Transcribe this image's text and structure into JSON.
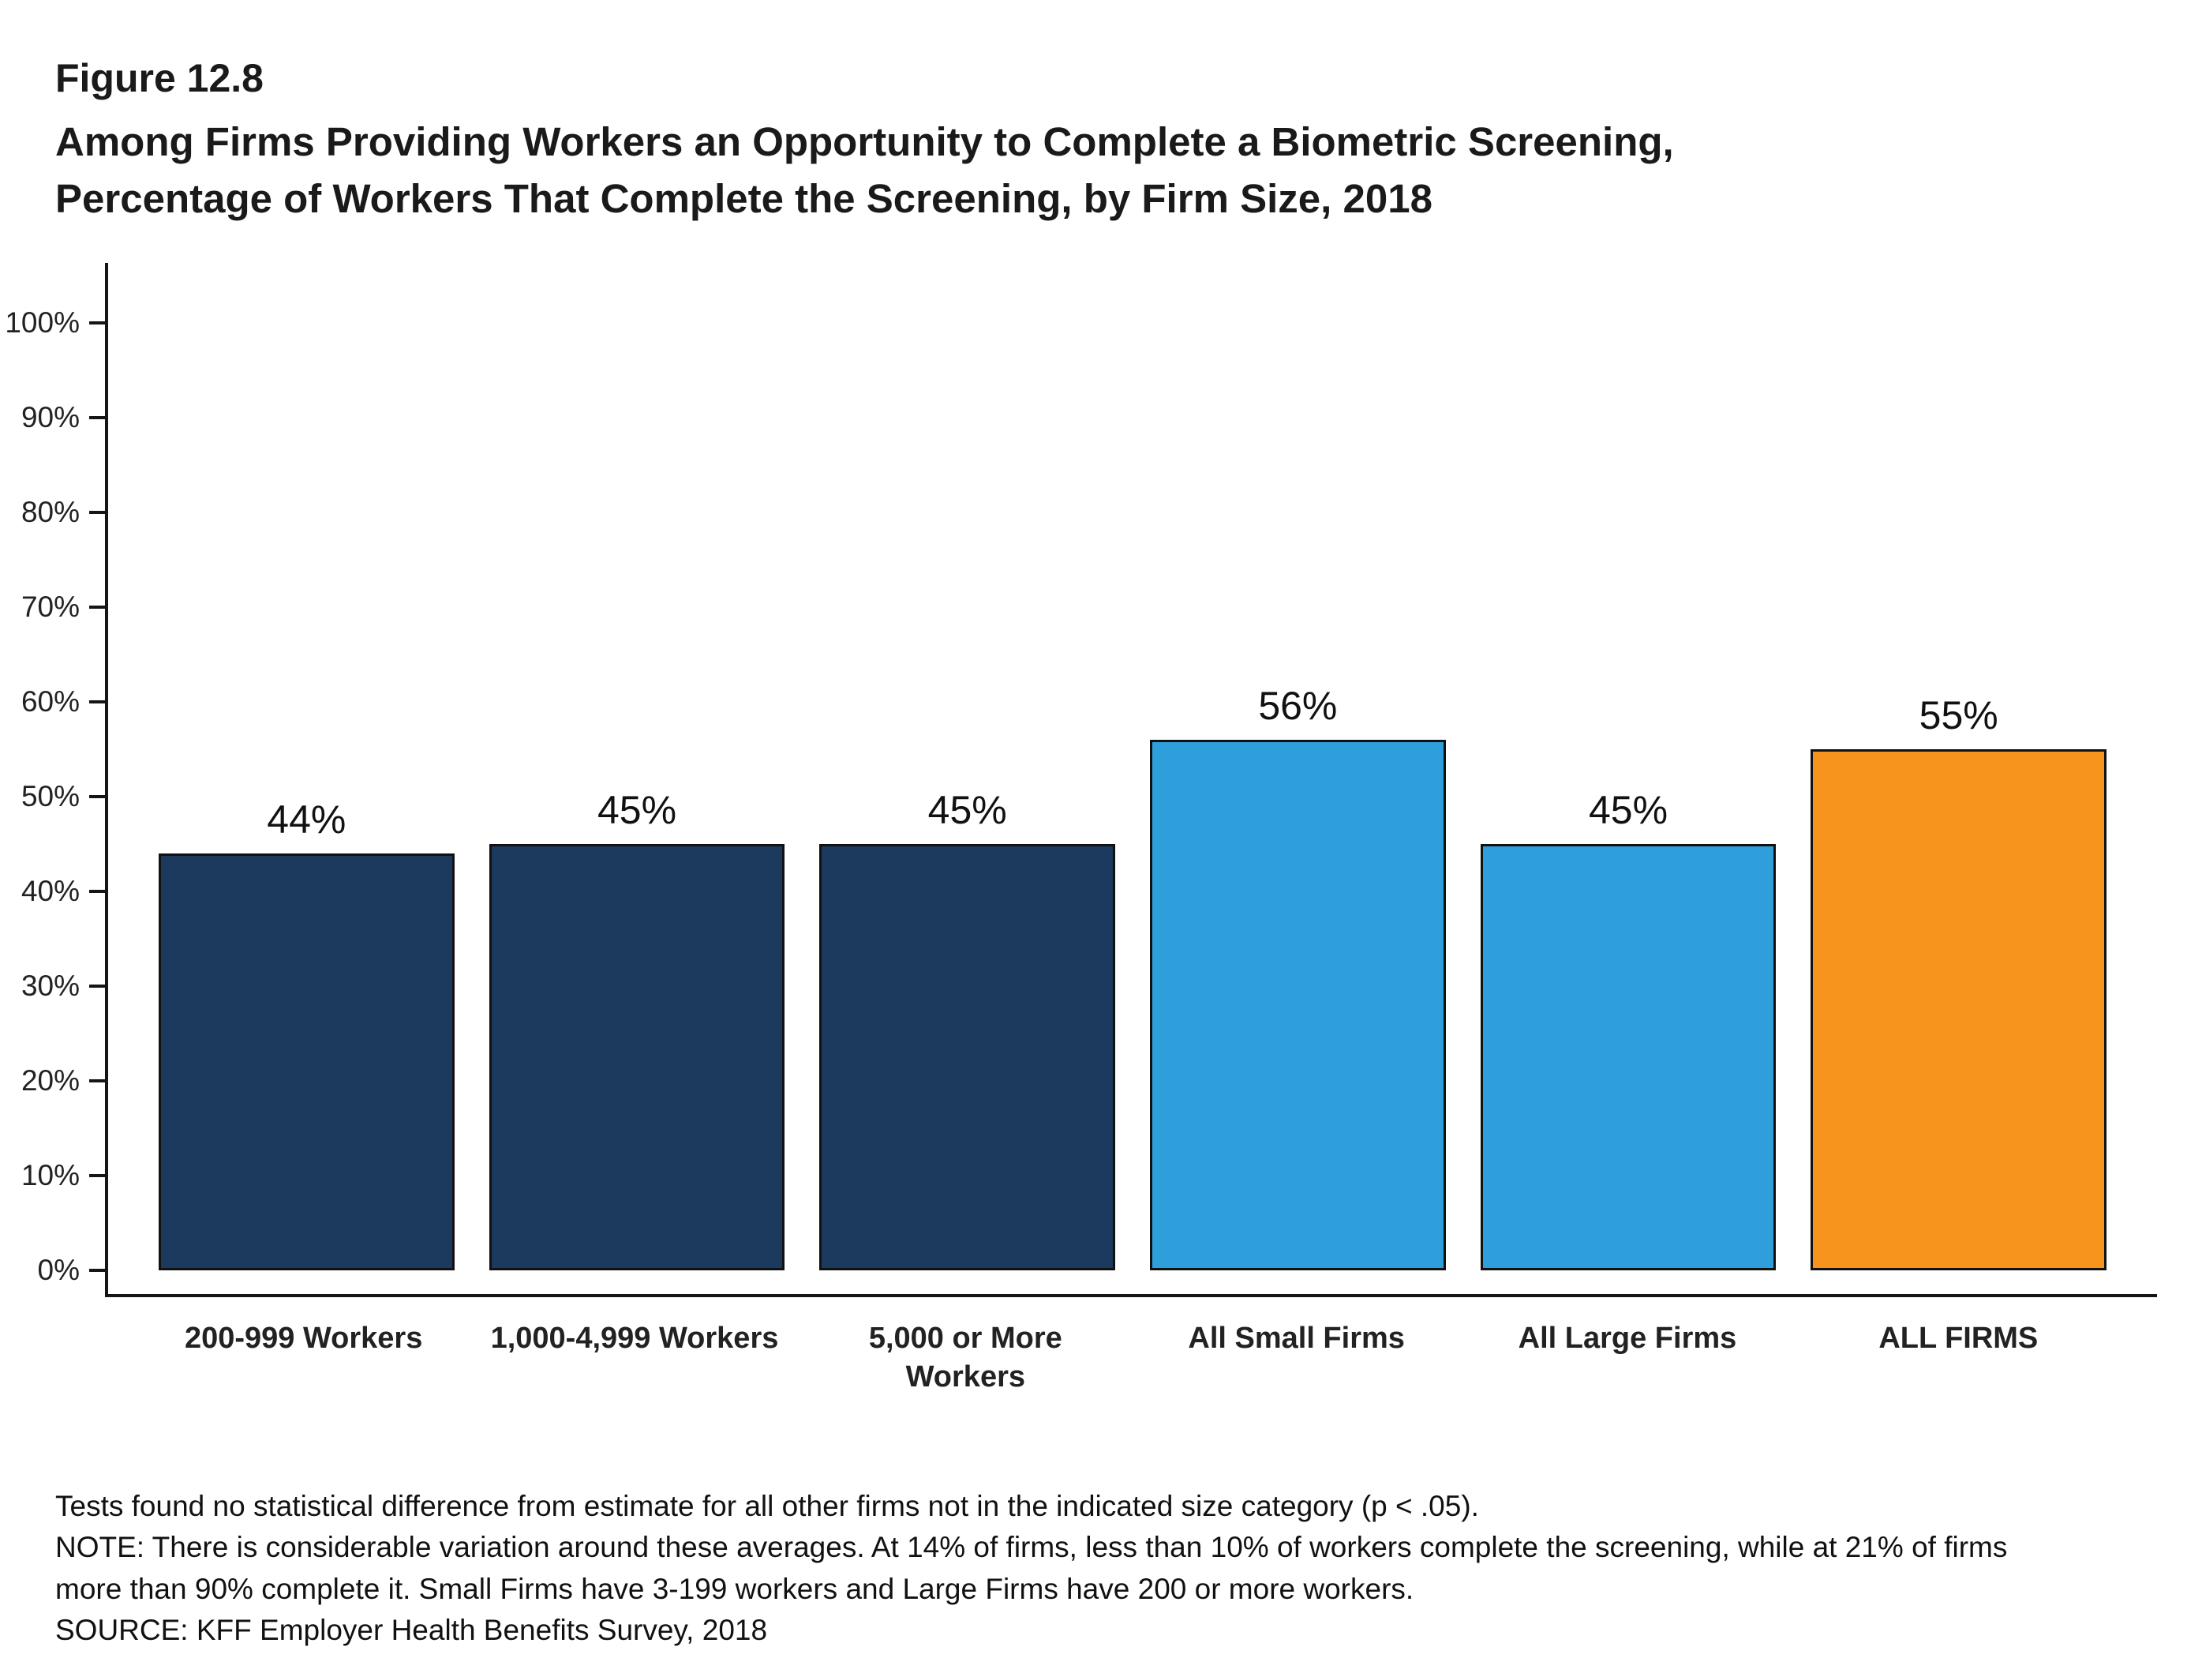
{
  "figure": {
    "label": "Figure 12.8",
    "title_line1": "Among Firms Providing Workers an Opportunity to Complete a Biometric Screening,",
    "title_line2": "Percentage of Workers That Complete the Screening, by Firm Size, 2018"
  },
  "chart_data": {
    "type": "bar",
    "title": "Among Firms Providing Workers an Opportunity to Complete a Biometric Screening, Percentage of Workers That Complete the Screening, by Firm Size, 2018",
    "categories": [
      "200-999 Workers",
      "1,000-4,999 Workers",
      "5,000 or More Workers",
      "All Small Firms",
      "All Large Firms",
      "ALL FIRMS"
    ],
    "values": [
      44,
      45,
      45,
      56,
      45,
      55
    ],
    "value_labels": [
      "44%",
      "45%",
      "45%",
      "56%",
      "45%",
      "55%"
    ],
    "bar_colors": [
      "#1B3A5E",
      "#1B3A5E",
      "#1B3A5E",
      "#2F9FDC",
      "#2F9FDC",
      "#F7941E"
    ],
    "xlabel": "",
    "ylabel": "",
    "ylim": [
      0,
      100
    ],
    "ytick_interval": 10,
    "ytick_labels": [
      "0%",
      "10%",
      "20%",
      "30%",
      "40%",
      "50%",
      "60%",
      "70%",
      "80%",
      "90%",
      "100%"
    ],
    "grid": false,
    "legend": "none",
    "colors": {
      "navy": "#1B3A5E",
      "light_blue": "#2F9FDC",
      "orange": "#F7941E",
      "axis": "#151515"
    }
  },
  "footnotes": {
    "lines": [
      "Tests found no statistical difference from estimate for all other firms not in the indicated size category (p < .05).",
      "NOTE: There is considerable variation around these averages. At 14% of firms, less than 10% of workers complete the screening, while at 21% of firms",
      "more than 90% complete it. Small Firms have 3-199 workers and Large Firms have 200 or more workers.",
      "SOURCE: KFF Employer Health Benefits Survey, 2018"
    ]
  }
}
